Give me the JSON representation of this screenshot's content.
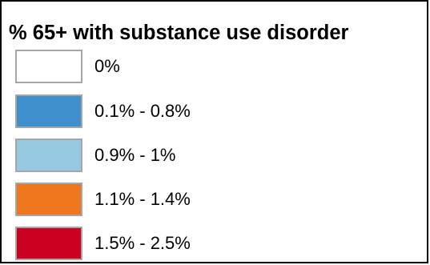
{
  "legend": {
    "title": "% 65+ with substance use disorder",
    "items": [
      {
        "label": "0%",
        "color": "#ffffff"
      },
      {
        "label": "0.1% - 0.8%",
        "color": "#3e8fcb"
      },
      {
        "label": "0.9% - 1%",
        "color": "#96c8e2"
      },
      {
        "label": "1.1% - 1.4%",
        "color": "#ee761f"
      },
      {
        "label": "1.5% - 2.5%",
        "color": "#cc0020"
      }
    ]
  }
}
